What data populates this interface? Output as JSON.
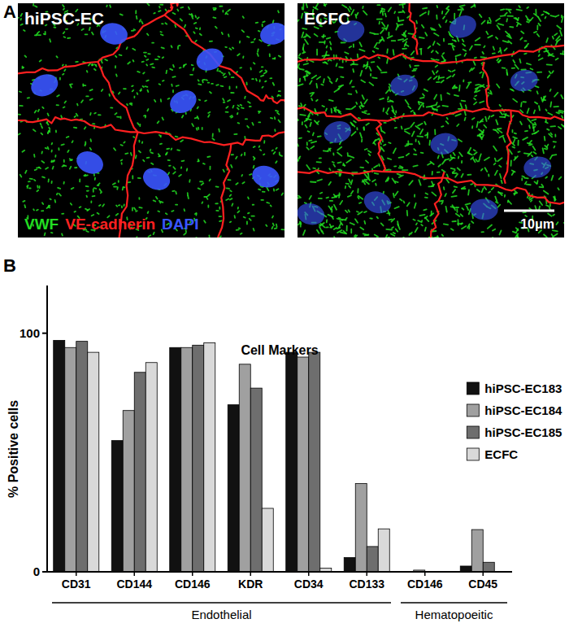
{
  "figure": {
    "panel_labels": [
      "A",
      "B"
    ]
  },
  "panel_a": {
    "images": [
      {
        "title": "hiPSC-EC"
      },
      {
        "title": "ECFC"
      }
    ],
    "channels": [
      {
        "label": "VWF",
        "color": "#22dd22"
      },
      {
        "label": "VE-cadherin",
        "color": "#ff2020"
      },
      {
        "label": "DAPI",
        "color": "#3a55ff"
      }
    ],
    "scale_bar": "10μm"
  },
  "chart_data": {
    "type": "bar",
    "title": "Cell Markers",
    "y_label": "% Positive cells",
    "categories": [
      "CD31",
      "CD144",
      "CD146",
      "KDR",
      "CD34",
      "CD133",
      "CD146",
      "CD45"
    ],
    "groups": [
      {
        "label": "Endothelial",
        "count": 6
      },
      {
        "label": "Hematopoeitic",
        "count": 2
      }
    ],
    "series": [
      {
        "name": "hiPSC-EC183",
        "color": "#111111",
        "values": [
          97,
          55,
          94,
          70,
          92,
          6,
          0,
          2.4
        ]
      },
      {
        "name": "hiPSC-EC184",
        "color": "#a0a0a0",
        "values": [
          94,
          67.6,
          94,
          87,
          90,
          37,
          0.7,
          17.7
        ]
      },
      {
        "name": "hiPSC-EC185",
        "color": "#6e6e6e",
        "values": [
          96.6,
          83.6,
          95,
          77,
          92,
          10.6,
          0,
          4
        ]
      },
      {
        "name": "ECFC",
        "color": "#d9d9d9",
        "values": [
          92,
          87.7,
          96,
          26.6,
          1.5,
          18,
          0,
          0
        ]
      }
    ],
    "ylim": [
      0,
      120
    ],
    "yticks": [
      0,
      100
    ],
    "grid": false,
    "legend": "right"
  }
}
